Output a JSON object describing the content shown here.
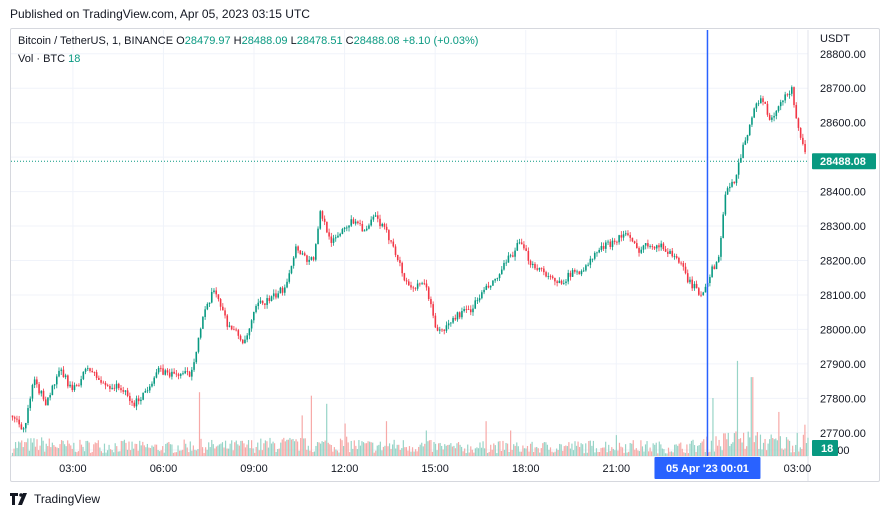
{
  "header": {
    "published": "Published on TradingView.com, Apr 05, 2023 03:15 UTC"
  },
  "legend": {
    "symbol": "Bitcoin / TetherUS, 1, BINANCE",
    "o_label": "O",
    "o": "28479.97",
    "h_label": "H",
    "h": "28488.09",
    "l_label": "L",
    "l": "28478.51",
    "c_label": "C",
    "c": "28488.08",
    "change": "+8.10 (+0.03%)",
    "vol_label": "Vol · BTC",
    "vol": "18"
  },
  "footer": {
    "brand": "TradingView",
    "logo_icon": "tradingview-logo-icon"
  },
  "colors": {
    "up": "#089981",
    "down": "#f23645",
    "vol_up": "#97d4c7",
    "vol_down": "#f7a9a7",
    "crosshair": "#2962ff",
    "grid": "#f0f3fa",
    "axis_text": "#131722"
  },
  "chart_data": {
    "type": "candlestick",
    "symbol": "Bitcoin / TetherUS",
    "interval": "1",
    "exchange": "BINANCE",
    "price_axis_unit": "USDT",
    "ylim": [
      27650,
      28840
    ],
    "y_ticks": [
      "28800.00",
      "28700.00",
      "28600.00",
      "28500.00",
      "28400.00",
      "28300.00",
      "28200.00",
      "28100.00",
      "28000.00",
      "27900.00",
      "27800.00",
      "27700.00"
    ],
    "y_tick_values": [
      28800,
      28700,
      28600,
      28500,
      28400,
      28300,
      28200,
      28100,
      28000,
      27900,
      27800,
      27700
    ],
    "y_bottom_tick": "00.00",
    "x_ticks": [
      "03:00",
      "06:00",
      "09:00",
      "12:00",
      "15:00",
      "18:00",
      "21:00",
      "03:00"
    ],
    "x_tick_hours": [
      3,
      6,
      9,
      12,
      15,
      18,
      21,
      27
    ],
    "x_range_hours": [
      0.95,
      27.35
    ],
    "crosshair_label": "05 Apr '23   00:01",
    "crosshair_hour": 24.02,
    "last_price_label": "28488.08",
    "last_price": 28488.08,
    "volume_label": "18",
    "price_path": [
      [
        1.0,
        27750
      ],
      [
        1.4,
        27710
      ],
      [
        1.7,
        27850
      ],
      [
        2.1,
        27790
      ],
      [
        2.6,
        27880
      ],
      [
        3.0,
        27820
      ],
      [
        3.5,
        27890
      ],
      [
        4.0,
        27840
      ],
      [
        4.6,
        27830
      ],
      [
        5.0,
        27780
      ],
      [
        5.4,
        27820
      ],
      [
        5.8,
        27880
      ],
      [
        6.3,
        27870
      ],
      [
        6.9,
        27870
      ],
      [
        7.3,
        28030
      ],
      [
        7.7,
        28120
      ],
      [
        8.1,
        28020
      ],
      [
        8.7,
        27960
      ],
      [
        9.1,
        28070
      ],
      [
        9.6,
        28090
      ],
      [
        10.0,
        28120
      ],
      [
        10.4,
        28240
      ],
      [
        10.8,
        28200
      ],
      [
        11.0,
        28210
      ],
      [
        11.2,
        28340
      ],
      [
        11.6,
        28250
      ],
      [
        12.0,
        28300
      ],
      [
        12.4,
        28320
      ],
      [
        12.7,
        28280
      ],
      [
        13.0,
        28330
      ],
      [
        13.3,
        28290
      ],
      [
        13.6,
        28250
      ],
      [
        14.0,
        28140
      ],
      [
        14.3,
        28120
      ],
      [
        14.7,
        28130
      ],
      [
        15.0,
        28010
      ],
      [
        15.2,
        27990
      ],
      [
        15.7,
        28040
      ],
      [
        16.2,
        28060
      ],
      [
        16.6,
        28110
      ],
      [
        17.0,
        28140
      ],
      [
        17.4,
        28200
      ],
      [
        17.8,
        28250
      ],
      [
        18.2,
        28190
      ],
      [
        18.6,
        28170
      ],
      [
        19.0,
        28130
      ],
      [
        19.5,
        28160
      ],
      [
        20.0,
        28180
      ],
      [
        20.4,
        28230
      ],
      [
        20.8,
        28250
      ],
      [
        21.3,
        28280
      ],
      [
        21.7,
        28230
      ],
      [
        22.1,
        28250
      ],
      [
        22.5,
        28240
      ],
      [
        23.0,
        28210
      ],
      [
        23.4,
        28140
      ],
      [
        23.8,
        28100
      ],
      [
        24.1,
        28160
      ],
      [
        24.4,
        28210
      ],
      [
        24.6,
        28390
      ],
      [
        24.9,
        28430
      ],
      [
        25.1,
        28500
      ],
      [
        25.5,
        28620
      ],
      [
        25.8,
        28680
      ],
      [
        26.1,
        28600
      ],
      [
        26.5,
        28660
      ],
      [
        26.8,
        28700
      ],
      [
        27.0,
        28600
      ],
      [
        27.3,
        28488
      ]
    ],
    "volume_path": [
      [
        1.0,
        9
      ],
      [
        2.0,
        10
      ],
      [
        3.0,
        8
      ],
      [
        4.0,
        9
      ],
      [
        5.0,
        8
      ],
      [
        6.0,
        7
      ],
      [
        7.0,
        9
      ],
      [
        8.0,
        8
      ],
      [
        9.0,
        9
      ],
      [
        10.0,
        10
      ],
      [
        11.0,
        9
      ],
      [
        12.0,
        10
      ],
      [
        13.0,
        8
      ],
      [
        14.0,
        9
      ],
      [
        15.0,
        8
      ],
      [
        16.0,
        7
      ],
      [
        17.0,
        8
      ],
      [
        18.0,
        7
      ],
      [
        19.0,
        8
      ],
      [
        20.0,
        8
      ],
      [
        21.0,
        9
      ],
      [
        22.0,
        8
      ],
      [
        23.0,
        7
      ],
      [
        24.0,
        10
      ],
      [
        25.0,
        14
      ],
      [
        26.0,
        12
      ],
      [
        27.0,
        10
      ],
      [
        27.3,
        18
      ]
    ],
    "volume_spikes": [
      [
        7.2,
        55
      ],
      [
        10.6,
        35
      ],
      [
        10.9,
        52
      ],
      [
        11.4,
        45
      ],
      [
        12.0,
        28
      ],
      [
        13.4,
        30
      ],
      [
        14.7,
        22
      ],
      [
        16.7,
        30
      ],
      [
        17.5,
        22
      ],
      [
        21.0,
        18
      ],
      [
        24.2,
        50
      ],
      [
        25.0,
        82
      ],
      [
        25.5,
        68
      ],
      [
        26.4,
        38
      ],
      [
        27.0,
        20
      ]
    ],
    "volume_max": 100
  }
}
